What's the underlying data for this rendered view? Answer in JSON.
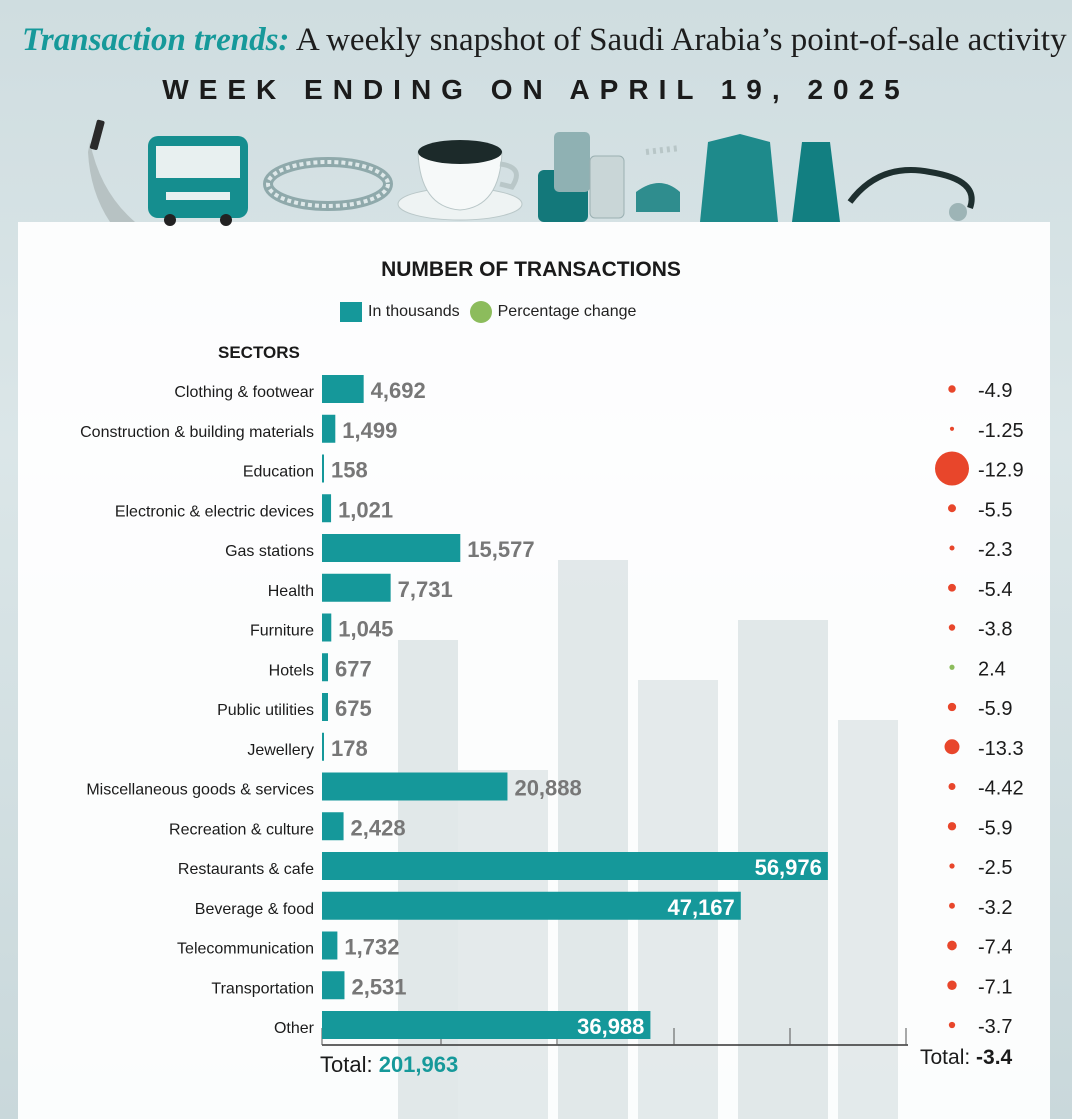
{
  "header": {
    "title_accent": "Transaction trends:",
    "title_rest": " A weekly snapshot of Saudi Arabia’s point-of-sale activity",
    "subtitle": "WEEK ENDING ON APRIL 19, 2025"
  },
  "colors": {
    "bar": "#15989a",
    "negative": "#e8462b",
    "positive": "#8cbc5c"
  },
  "chart_data": {
    "type": "bar",
    "title": "NUMBER OF TRANSACTIONS",
    "legend": [
      "In thousands",
      "Percentage change"
    ],
    "category_header": "SECTORS",
    "categories": [
      "Clothing & footwear",
      "Construction & building materials",
      "Education",
      "Electronic & electric devices",
      "Gas stations",
      "Health",
      "Furniture",
      "Hotels",
      "Public utilities",
      "Jewellery",
      "Miscellaneous goods & services",
      "Recreation & culture",
      "Restaurants & cafe",
      "Beverage & food",
      "Telecommunication",
      "Transportation",
      "Other"
    ],
    "series": [
      {
        "name": "In thousands",
        "values": [
          4692,
          1499,
          158,
          1021,
          15577,
          7731,
          1045,
          677,
          675,
          178,
          20888,
          2428,
          56976,
          47167,
          1732,
          2531,
          36988
        ],
        "labels": [
          "4,692",
          "1,499",
          "158",
          "1,021",
          "15,577",
          "7,731",
          "1,045",
          "677",
          "675",
          "178",
          "20,888",
          "2,428",
          "56,976",
          "47,167",
          "1,732",
          "2,531",
          "36,988"
        ]
      },
      {
        "name": "Percentage change",
        "values": [
          -4.9,
          -1.25,
          -12.9,
          -5.5,
          -2.3,
          -5.4,
          -3.8,
          2.4,
          -5.9,
          -13.3,
          -4.42,
          -5.9,
          -2.5,
          -3.2,
          -7.4,
          -7.1,
          -3.7
        ],
        "labels": [
          "-4.9",
          "-1.25",
          "-12.9",
          "-5.5",
          "-2.3",
          "-5.4",
          "-3.8",
          "2.4",
          "-5.9",
          "-13.3",
          "-4.42",
          "-5.9",
          "-2.5",
          "-3.2",
          "-7.4",
          "-7.1",
          "-3.7"
        ]
      }
    ],
    "xlim": [
      0,
      66000
    ],
    "total_label": "Total: ",
    "total_value": "201,963",
    "total_change_label": "Total: ",
    "total_change_value": "-3.4"
  }
}
